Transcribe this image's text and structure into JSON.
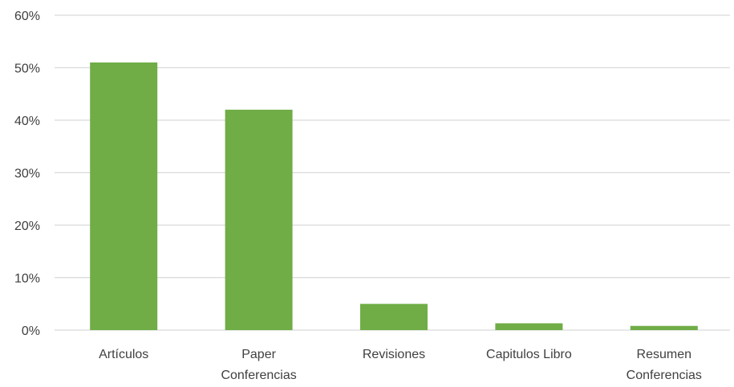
{
  "chart_data": {
    "type": "bar",
    "title": "",
    "xlabel": "",
    "ylabel": "",
    "ylim": [
      0,
      60
    ],
    "yticks": [
      0,
      10,
      20,
      30,
      40,
      50,
      60
    ],
    "ytick_labels": [
      "0%",
      "10%",
      "20%",
      "30%",
      "40%",
      "50%",
      "60%"
    ],
    "grid": true,
    "categories": [
      [
        "Artículos"
      ],
      [
        "Paper",
        "Conferencias"
      ],
      [
        "Revisiones"
      ],
      [
        "Capitulos Libro"
      ],
      [
        "Resumen",
        "Conferencias"
      ]
    ],
    "values": [
      51,
      42,
      5,
      1.3,
      0.8
    ],
    "unit": "%",
    "colors": {
      "bar": "#70ad47",
      "grid": "#d9d9d9",
      "text": "#404040"
    }
  }
}
